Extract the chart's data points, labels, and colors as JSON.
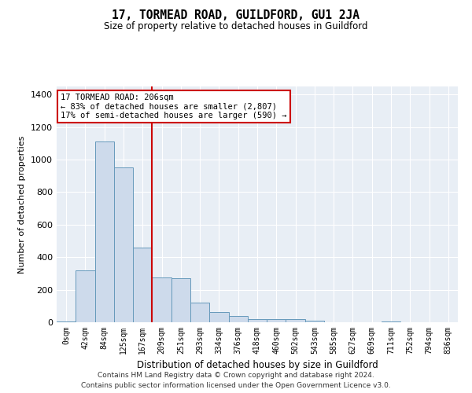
{
  "title": "17, TORMEAD ROAD, GUILDFORD, GU1 2JA",
  "subtitle": "Size of property relative to detached houses in Guildford",
  "xlabel": "Distribution of detached houses by size in Guildford",
  "ylabel": "Number of detached properties",
  "footer_line1": "Contains HM Land Registry data © Crown copyright and database right 2024.",
  "footer_line2": "Contains public sector information licensed under the Open Government Licence v3.0.",
  "bar_labels": [
    "0sqm",
    "42sqm",
    "84sqm",
    "125sqm",
    "167sqm",
    "209sqm",
    "251sqm",
    "293sqm",
    "334sqm",
    "376sqm",
    "418sqm",
    "460sqm",
    "502sqm",
    "543sqm",
    "585sqm",
    "627sqm",
    "669sqm",
    "711sqm",
    "752sqm",
    "794sqm",
    "836sqm"
  ],
  "bar_values": [
    5,
    320,
    1110,
    950,
    460,
    275,
    270,
    120,
    65,
    40,
    20,
    20,
    20,
    10,
    0,
    0,
    0,
    5,
    0,
    0,
    0
  ],
  "bar_color": "#cddaeb",
  "bar_edge_color": "#6699bb",
  "vline_x": 4.5,
  "vline_color": "#cc0000",
  "ylim": [
    0,
    1450
  ],
  "yticks": [
    0,
    200,
    400,
    600,
    800,
    1000,
    1200,
    1400
  ],
  "annotation_title": "17 TORMEAD ROAD: 206sqm",
  "annotation_line1": "← 83% of detached houses are smaller (2,807)",
  "annotation_line2": "17% of semi-detached houses are larger (590) →",
  "annotation_box_color": "#ffffff",
  "annotation_box_edge": "#cc0000",
  "background_color": "#e8eef5"
}
